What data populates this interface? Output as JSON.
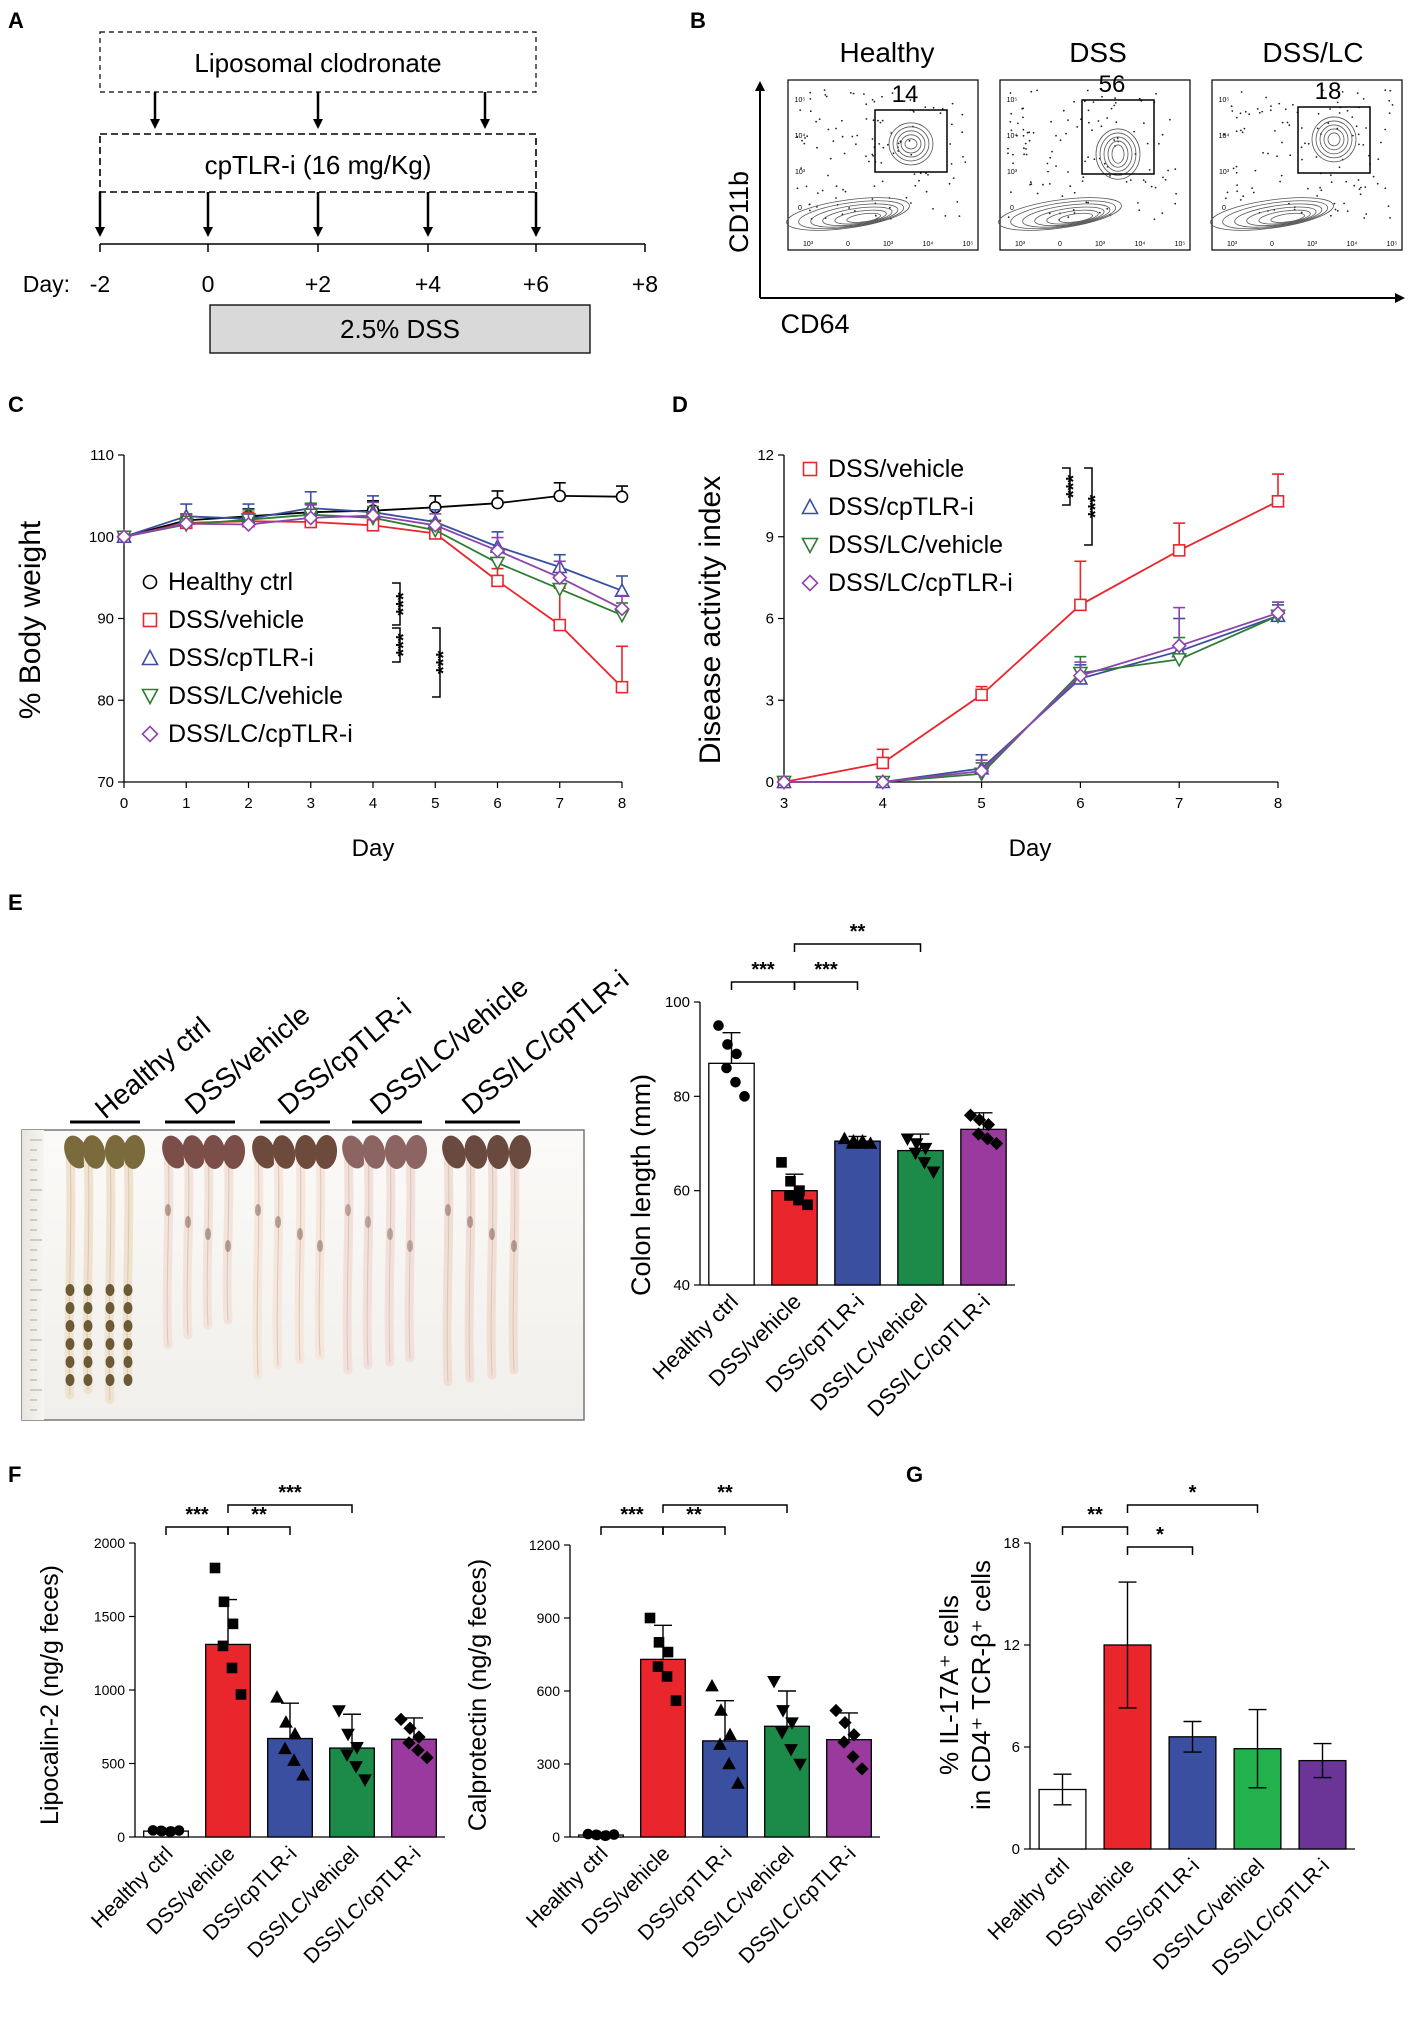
{
  "panel_labels": {
    "a": "A",
    "b": "B",
    "c": "C",
    "d": "D",
    "e": "E",
    "f": "F",
    "g": "G"
  },
  "panel_a": {
    "clodronate_label": "Liposomal clodronate",
    "cptlr_label": "cpTLR-i (16 mg/Kg)",
    "day_prefix": "Day:",
    "day_ticks": [
      "-2",
      "0",
      "+2",
      "+4",
      "+6",
      "+8"
    ],
    "dss_label": "2.5% DSS"
  },
  "panel_b": {
    "y_label": "CD11b",
    "x_label": "CD64",
    "plots": [
      {
        "title": "Healthy",
        "gate_value": "14"
      },
      {
        "title": "DSS",
        "gate_value": "56"
      },
      {
        "title": "DSS/LC",
        "gate_value": "18"
      }
    ]
  },
  "colors": {
    "healthy": "#000000",
    "dss_vehicle": "#e8262c",
    "dss_cptlr": "#3a4fa0",
    "dss_lc_vehicle": "#1c8a48",
    "dss_lc_cptlr": "#9b3a9e",
    "g_lc_vehicle": "#22b14c",
    "g_lc_cptlr": "#6a3596",
    "line_lc_vehicle": "#2e7d32",
    "line_lc_cptlr": "#8e44ad"
  },
  "panel_e": {
    "photo_labels": [
      "Healthy ctrl",
      "DSS/vehicle",
      "DSS/cpTLR-i",
      "DSS/LC/vehicle",
      "DSS/LC/cpTLR-i"
    ]
  },
  "chart_data": [
    {
      "id": "C",
      "type": "line",
      "xlabel": "Day",
      "ylabel": "% Body weight",
      "x": [
        0,
        1,
        2,
        3,
        4,
        5,
        6,
        7,
        8
      ],
      "xlim": [
        0,
        8
      ],
      "ylim": [
        70,
        110
      ],
      "yticks": [
        70,
        80,
        90,
        100,
        110
      ],
      "series": [
        {
          "name": "Healthy ctrl",
          "marker": "circle",
          "color_key": "healthy",
          "values": [
            100,
            102,
            102.5,
            103,
            103.2,
            103.6,
            104.1,
            105,
            104.9
          ],
          "errors": [
            0,
            0.8,
            0.9,
            1.0,
            1.2,
            1.4,
            1.5,
            1.6,
            1.3
          ]
        },
        {
          "name": "DSS/vehicle",
          "marker": "square",
          "color_key": "dss_vehicle",
          "values": [
            100,
            101.7,
            101.9,
            101.8,
            101.4,
            100.4,
            94.6,
            89.2,
            81.6
          ],
          "errors": [
            0,
            1.0,
            1.1,
            1.3,
            1.5,
            1.5,
            1.5,
            4.5,
            5.0
          ]
        },
        {
          "name": "DSS/cpTLR-i",
          "marker": "triangle",
          "color_key": "dss_cptlr",
          "values": [
            100,
            102.5,
            102.2,
            103.5,
            103,
            101.8,
            98.8,
            96.3,
            93.4
          ],
          "errors": [
            0,
            1.5,
            1.8,
            2.0,
            2.0,
            1.5,
            1.8,
            1.5,
            1.8
          ]
        },
        {
          "name": "DSS/LC/vehicle",
          "marker": "triangle-down",
          "color_key": "line_lc_vehicle",
          "values": [
            100,
            101.5,
            102.1,
            102.7,
            102.3,
            100.8,
            96.8,
            93.6,
            90.4
          ],
          "errors": [
            0,
            1.0,
            1.2,
            1.4,
            1.4,
            1.2,
            1.5,
            1.5,
            1.5
          ]
        },
        {
          "name": "DSS/LC/cpTLR-i",
          "marker": "diamond",
          "color_key": "line_lc_cptlr",
          "values": [
            100,
            101.6,
            101.5,
            102.3,
            102.6,
            101.4,
            98.3,
            95,
            91.2
          ],
          "errors": [
            0,
            1.2,
            1.3,
            1.6,
            1.6,
            1.4,
            1.6,
            2.0,
            1.6
          ]
        }
      ],
      "significance": [
        "***",
        "***",
        "***",
        "***"
      ]
    },
    {
      "id": "D",
      "type": "line",
      "xlabel": "Day",
      "ylabel": "Disease activity index",
      "x": [
        3,
        4,
        5,
        6,
        7,
        8
      ],
      "xlim": [
        3,
        8
      ],
      "ylim": [
        0,
        12
      ],
      "yticks": [
        0,
        3,
        6,
        9,
        12
      ],
      "series": [
        {
          "name": "DSS/vehicle",
          "marker": "square",
          "color_key": "dss_vehicle",
          "values": [
            0,
            0.7,
            3.2,
            6.5,
            8.5,
            10.3
          ],
          "errors": [
            0,
            0.5,
            0.3,
            1.6,
            1.0,
            1.0
          ]
        },
        {
          "name": "DSS/cpTLR-i",
          "marker": "triangle",
          "color_key": "dss_cptlr",
          "values": [
            0,
            0,
            0.5,
            3.8,
            4.8,
            6.1
          ],
          "errors": [
            0,
            0,
            0.5,
            0.5,
            1.2,
            0.4
          ]
        },
        {
          "name": "DSS/LC/vehicle",
          "marker": "triangle-down",
          "color_key": "line_lc_vehicle",
          "values": [
            0,
            0,
            0.3,
            4.0,
            4.5,
            6.1
          ],
          "errors": [
            0,
            0,
            0.4,
            0.6,
            0.8,
            0.5
          ]
        },
        {
          "name": "DSS/LC/cpTLR-i",
          "marker": "diamond",
          "color_key": "line_lc_cptlr",
          "values": [
            0,
            0,
            0.4,
            3.9,
            5.0,
            6.2
          ],
          "errors": [
            0,
            0,
            0.4,
            0.5,
            1.4,
            0.4
          ]
        }
      ],
      "significance": [
        "***",
        "***"
      ]
    },
    {
      "id": "E",
      "type": "bar",
      "ylabel": "Colon length (mm)",
      "categories": [
        "Healthy ctrl",
        "DSS/vehicle",
        "DSS/cpTLR-i",
        "DSS/LC/vehicel",
        "DSS/LC/cpTLR-i"
      ],
      "values": [
        87,
        60,
        70.5,
        68.5,
        73
      ],
      "errors": [
        6.5,
        3.5,
        1.0,
        3.5,
        3.5
      ],
      "points": [
        [
          95,
          91,
          89,
          86,
          83,
          80
        ],
        [
          66,
          62,
          60,
          59,
          58,
          57
        ],
        [
          71,
          70.5,
          70.5,
          70,
          70,
          70
        ],
        [
          71,
          70,
          69,
          68,
          66,
          64
        ],
        [
          76,
          75,
          74,
          72,
          71,
          70
        ]
      ],
      "point_markers": [
        "circle",
        "square",
        "triangle",
        "triangle-down",
        "diamond"
      ],
      "colors": [
        "#ffffff",
        "#e8262c",
        "#3a4fa0",
        "#1c8a48",
        "#9b3a9e"
      ],
      "ylim": [
        40,
        100
      ],
      "yticks": [
        40,
        60,
        80,
        100
      ],
      "significance": [
        {
          "from": 0,
          "to": 1,
          "label": "***"
        },
        {
          "from": 1,
          "to": 2,
          "label": "***"
        },
        {
          "from": 1,
          "to": 3,
          "label": "**"
        }
      ]
    },
    {
      "id": "F1",
      "type": "bar",
      "ylabel": "Lipocalin-2 (ng/g feces)",
      "categories": [
        "Healthy ctrl",
        "DSS/vehicle",
        "DSS/cpTLR-i",
        "DSS/LC/vehicel",
        "DSS/LC/cpTLR-i"
      ],
      "values": [
        40,
        1310,
        670,
        605,
        665
      ],
      "errors": [
        15,
        305,
        240,
        230,
        145
      ],
      "points": [
        [
          45,
          40,
          38,
          42,
          36,
          44
        ],
        [
          1830,
          1600,
          1450,
          1300,
          1150,
          970
        ],
        [
          950,
          780,
          700,
          600,
          520,
          420
        ],
        [
          860,
          700,
          610,
          560,
          480,
          390
        ],
        [
          800,
          740,
          680,
          640,
          590,
          540
        ]
      ],
      "point_markers": [
        "circle",
        "square",
        "triangle",
        "triangle-down",
        "diamond"
      ],
      "colors": [
        "#ffffff",
        "#e8262c",
        "#3a4fa0",
        "#1c8a48",
        "#9b3a9e"
      ],
      "ylim": [
        0,
        2000
      ],
      "yticks": [
        0,
        500,
        1000,
        1500,
        2000
      ],
      "significance": [
        {
          "from": 0,
          "to": 1,
          "label": "***"
        },
        {
          "from": 1,
          "to": 2,
          "label": "**"
        },
        {
          "from": 1,
          "to": 3,
          "label": "***"
        }
      ]
    },
    {
      "id": "F2",
      "type": "bar",
      "ylabel": "Calprotectin (ng/g feces)",
      "categories": [
        "Healthy ctrl",
        "DSS/vehicle",
        "DSS/cpTLR-i",
        "DSS/LC/vehicel",
        "DSS/LC/cpTLR-i"
      ],
      "values": [
        8,
        730,
        395,
        455,
        400
      ],
      "errors": [
        5,
        140,
        165,
        145,
        110
      ],
      "points": [
        [
          12,
          8,
          6,
          9,
          5,
          10
        ],
        [
          900,
          800,
          760,
          700,
          660,
          560
        ],
        [
          620,
          520,
          420,
          380,
          300,
          220
        ],
        [
          640,
          520,
          470,
          430,
          360,
          300
        ],
        [
          520,
          470,
          420,
          390,
          330,
          280
        ]
      ],
      "point_markers": [
        "circle",
        "square",
        "triangle",
        "triangle-down",
        "diamond"
      ],
      "colors": [
        "#ffffff",
        "#e8262c",
        "#3a4fa0",
        "#1c8a48",
        "#9b3a9e"
      ],
      "ylim": [
        0,
        1200
      ],
      "yticks": [
        0,
        300,
        600,
        900,
        1200
      ],
      "significance": [
        {
          "from": 0,
          "to": 1,
          "label": "***"
        },
        {
          "from": 1,
          "to": 2,
          "label": "**"
        },
        {
          "from": 1,
          "to": 3,
          "label": "**"
        }
      ]
    },
    {
      "id": "G",
      "type": "bar",
      "ylabel_line1": "% IL-17A⁺ cells",
      "ylabel_line2": "in CD4⁺ TCR-β⁺ cells",
      "categories": [
        "Healthy ctrl",
        "DSS/vehicle",
        "DSS/cpTLR-i",
        "DSS/LC/vehicel",
        "DSS/LC/cpTLR-i"
      ],
      "values": [
        3.5,
        12,
        6.6,
        5.9,
        5.2
      ],
      "errors": [
        0.9,
        3.7,
        0.9,
        2.3,
        1.0
      ],
      "colors": [
        "#ffffff",
        "#e8262c",
        "#3a4fa0",
        "#22b14c",
        "#6a3596"
      ],
      "ylim": [
        0,
        18
      ],
      "yticks": [
        0,
        6,
        12,
        18
      ],
      "significance": [
        {
          "from": 0,
          "to": 1,
          "label": "**"
        },
        {
          "from": 1,
          "to": 2,
          "label": "*"
        },
        {
          "from": 1,
          "to": 3,
          "label": "*"
        }
      ]
    }
  ]
}
